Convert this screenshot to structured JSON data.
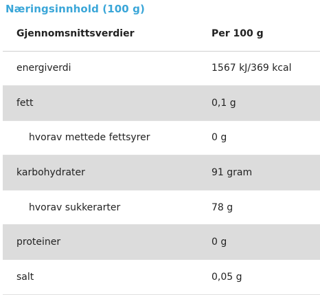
{
  "title": "Næringsinnhold (100 g)",
  "colors": {
    "title": "#3aa6d8",
    "shade": "#dcdcdc"
  },
  "table": {
    "header": {
      "label": "Gjennomsnittsverdier",
      "value": "Per 100 g"
    },
    "rows": [
      {
        "label": "energiverdi",
        "value": "1567 kJ/369 kcal"
      },
      {
        "label": "fett",
        "value": "0,1 g"
      },
      {
        "label": "hvorav mettede fettsyrer",
        "value": "0 g"
      },
      {
        "label": "karbohydrater",
        "value": "91 gram"
      },
      {
        "label": "hvorav sukkerarter",
        "value": "78 g"
      },
      {
        "label": "proteiner",
        "value": "0 g"
      },
      {
        "label": "salt",
        "value": "0,05 g"
      }
    ]
  }
}
